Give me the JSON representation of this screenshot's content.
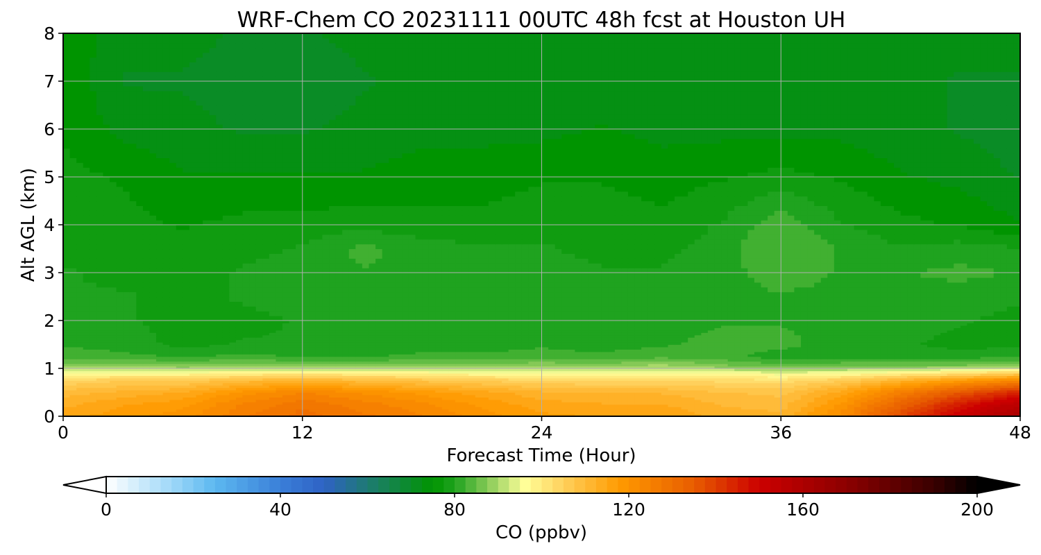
{
  "chart_data": {
    "type": "heatmap",
    "title": "WRF-Chem CO  20231111 00UTC 48h fcst at Houston UH",
    "xlabel": "Forecast Time (Hour)",
    "ylabel": "Alt AGL (km)",
    "xlim": [
      0,
      48
    ],
    "ylim": [
      0,
      8
    ],
    "x_ticks": [
      0,
      12,
      24,
      36,
      48
    ],
    "y_ticks": [
      0,
      1,
      2,
      3,
      4,
      5,
      6,
      7,
      8
    ],
    "grid": true,
    "x": [
      0,
      3,
      6,
      9,
      12,
      15,
      18,
      21,
      24,
      27,
      30,
      33,
      36,
      39,
      42,
      45,
      48
    ],
    "y": [
      0,
      0.25,
      0.5,
      0.75,
      0.9,
      1.05,
      1.25,
      1.5,
      2,
      2.5,
      3,
      3.5,
      4,
      5,
      6,
      7,
      8
    ],
    "z": [
      [
        115,
        118,
        120,
        126,
        130,
        127,
        124,
        120,
        117,
        116,
        116,
        113,
        112,
        122,
        138,
        152,
        162
      ],
      [
        113,
        116,
        118,
        124,
        128,
        125,
        122,
        118,
        115,
        114,
        114,
        111,
        110,
        119,
        133,
        146,
        156
      ],
      [
        110,
        112,
        114,
        120,
        124,
        121,
        118,
        115,
        112,
        111,
        111,
        109,
        108,
        115,
        126,
        136,
        145
      ],
      [
        104,
        106,
        106,
        110,
        112,
        110,
        108,
        106,
        104,
        104,
        104,
        103,
        102,
        106,
        112,
        118,
        124
      ],
      [
        96,
        97,
        97,
        99,
        100,
        99,
        98,
        97,
        96,
        96,
        97,
        96,
        95,
        96,
        99,
        102,
        106
      ],
      [
        88,
        88,
        87,
        88,
        87,
        87,
        88,
        88,
        89,
        88,
        90,
        87,
        85,
        86,
        86,
        87,
        88
      ],
      [
        83,
        82,
        81,
        82,
        81,
        81,
        82,
        82,
        82,
        82,
        83,
        82,
        80,
        80,
        80,
        80,
        81
      ],
      [
        81,
        80,
        78,
        79,
        79,
        79,
        80,
        80,
        81,
        80,
        81,
        82,
        82,
        80,
        79,
        78,
        78
      ],
      [
        80,
        79,
        78,
        78,
        79,
        80,
        80,
        80,
        80,
        80,
        80,
        81,
        81,
        81,
        80,
        79,
        78
      ],
      [
        79,
        79,
        78,
        79,
        80,
        81,
        81,
        80,
        79,
        79,
        79,
        80,
        81,
        80,
        80,
        80,
        79
      ],
      [
        79,
        78,
        78,
        79,
        80,
        81,
        81,
        81,
        80,
        79,
        79,
        80,
        83,
        81,
        81,
        82,
        81
      ],
      [
        78,
        78,
        77,
        78,
        79,
        82,
        80,
        79,
        79,
        78,
        78,
        80,
        84,
        81,
        79,
        80,
        79
      ],
      [
        78,
        77,
        76,
        77,
        77,
        78,
        77,
        77,
        78,
        78,
        77,
        79,
        83,
        79,
        77,
        76,
        74
      ],
      [
        77,
        76,
        74,
        74,
        74,
        74,
        75,
        75,
        76,
        76,
        75,
        76,
        77,
        76,
        74,
        73,
        71
      ],
      [
        76,
        73,
        72,
        71,
        71,
        72,
        73,
        73,
        73,
        74,
        73,
        73,
        73,
        73,
        72,
        71,
        70
      ],
      [
        76,
        71,
        71,
        70,
        69,
        71,
        72,
        72,
        72,
        72,
        72,
        72,
        72,
        72,
        72,
        71,
        71
      ],
      [
        76,
        72,
        72,
        71,
        71,
        72,
        72,
        73,
        72,
        72,
        73,
        72,
        72,
        72,
        72,
        72,
        72
      ]
    ],
    "colorbar": {
      "label": "CO  (ppbv)",
      "min": 0,
      "max": 200,
      "ticks": [
        0,
        40,
        80,
        120,
        160,
        200
      ],
      "extend": "both",
      "colors": [
        {
          "v": 0,
          "c": "#ffffff"
        },
        {
          "v": 15,
          "c": "#9fd8f8"
        },
        {
          "v": 25,
          "c": "#5cb8f0"
        },
        {
          "v": 40,
          "c": "#3a7fd8"
        },
        {
          "v": 50,
          "c": "#2f62c4"
        },
        {
          "v": 62,
          "c": "#1a7f63"
        },
        {
          "v": 75,
          "c": "#009400"
        },
        {
          "v": 80,
          "c": "#1fa31f"
        },
        {
          "v": 88,
          "c": "#8ccc5a"
        },
        {
          "v": 96,
          "c": "#ffff9a"
        },
        {
          "v": 105,
          "c": "#ffd05c"
        },
        {
          "v": 118,
          "c": "#ff9a00"
        },
        {
          "v": 135,
          "c": "#e85c00"
        },
        {
          "v": 150,
          "c": "#cc0000"
        },
        {
          "v": 170,
          "c": "#8c0000"
        },
        {
          "v": 190,
          "c": "#3a0000"
        },
        {
          "v": 200,
          "c": "#000000"
        }
      ]
    }
  }
}
